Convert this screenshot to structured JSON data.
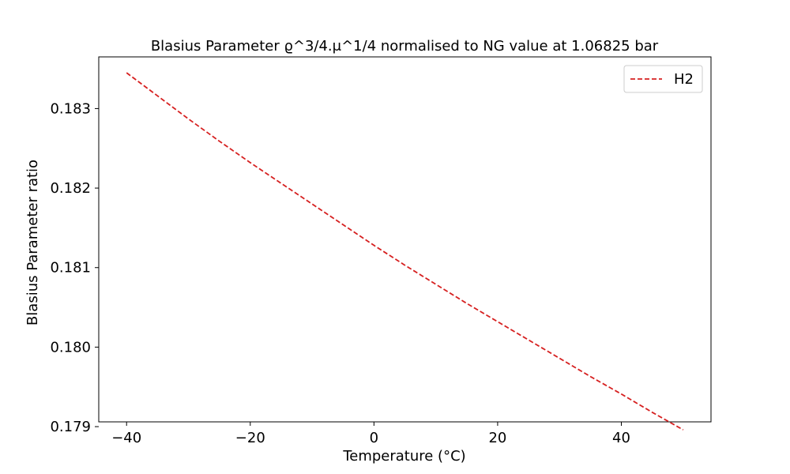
{
  "chart_data": {
    "type": "line",
    "title": "Blasius Parameter ϱ^3/4.μ^1/4  normalised to NG value at 1.06825 bar",
    "xlabel": "Temperature (°C)",
    "ylabel": "Blasius Parameter ratio",
    "xlim": [
      -44.5,
      54.5
    ],
    "ylim": [
      0.17906,
      0.18365
    ],
    "xticks": [
      -40,
      -20,
      0,
      20,
      40
    ],
    "xtick_labels": [
      "−40",
      "−20",
      "0",
      "20",
      "40"
    ],
    "yticks": [
      0.179,
      0.18,
      0.181,
      0.182,
      0.183
    ],
    "ytick_labels": [
      "0.179",
      "0.180",
      "0.181",
      "0.182",
      "0.183"
    ],
    "grid": false,
    "legend_position": "top-right",
    "series": [
      {
        "name": "H2",
        "color": "#d62020",
        "line_style": "dashed",
        "x": [
          -40,
          -35,
          -30,
          -25,
          -20,
          -15,
          -10,
          -5,
          0,
          5,
          10,
          15,
          20,
          25,
          30,
          35,
          40,
          45,
          50
        ],
        "y": [
          0.18345,
          0.18316,
          0.18287,
          0.18259,
          0.18232,
          0.18206,
          0.1818,
          0.18154,
          0.18128,
          0.18103,
          0.18079,
          0.18055,
          0.18032,
          0.18009,
          0.17986,
          0.17963,
          0.17941,
          0.17918,
          0.17896
        ]
      }
    ]
  }
}
